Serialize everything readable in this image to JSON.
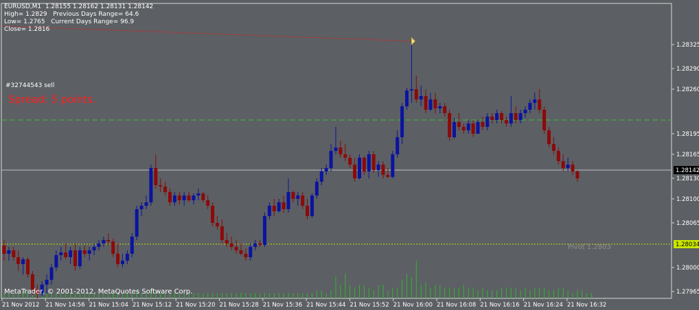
{
  "header": {
    "line1": "EURUSD,M1  1.28155 1.28162 1.28131 1.28142",
    "line2": "High= 1.2829   Previous Days Range= 64.6",
    "line3": "Low= 1.2765   Current Days Range= 96.9",
    "line4": "Close= 1.2816"
  },
  "order_label": "#32744543 sell",
  "spread_label": "Spread: 5 points.",
  "pivot_label": "Pivot  1.2803",
  "copyright": "MetaTrader, © 2001-2012, MetaQuotes Software Corp.",
  "colors": {
    "background": "#5c5f63",
    "bull": "#0a14a0",
    "bear": "#8c0a0a",
    "volume": "#2eb82e",
    "grid": "#000000",
    "order_line": "#3fbf3f",
    "pivot_line": "#c8e600",
    "price_line": "#c0c0c0"
  },
  "chart_data": {
    "type": "candlestick",
    "symbol": "EURUSD",
    "timeframe": "M1",
    "ylim": [
      1.27955,
      1.28385
    ],
    "y_ticks": [
      "1.28325",
      "1.28290",
      "1.28260",
      "1.28195",
      "1.28165",
      "1.28130",
      "1.28100",
      "1.28065",
      "1.28000",
      "1.27965"
    ],
    "x_ticks": [
      "21 Nov 2012",
      "21 Nov 14:56",
      "21 Nov 15:04",
      "21 Nov 15:12",
      "21 Nov 15:20",
      "21 Nov 15:28",
      "21 Nov 15:36",
      "21 Nov 15:44",
      "21 Nov 15:52",
      "21 Nov 16:00",
      "21 Nov 16:08",
      "21 Nov 16:16",
      "21 Nov 16:24",
      "21 Nov 16:32"
    ],
    "current_price": "1.28142",
    "order_price": "1.28215",
    "pivot_price": "1.28034",
    "pivot": 1.2803,
    "candles": [
      {
        "o": 1.28032,
        "h": 1.2804,
        "l": 1.2801,
        "c": 1.2802
      },
      {
        "o": 1.2802,
        "h": 1.2803,
        "l": 1.2801,
        "c": 1.28025
      },
      {
        "o": 1.28025,
        "h": 1.2803,
        "l": 1.2801,
        "c": 1.28015
      },
      {
        "o": 1.28015,
        "h": 1.28025,
        "l": 1.27995,
        "c": 1.28005
      },
      {
        "o": 1.28005,
        "h": 1.28015,
        "l": 1.2799,
        "c": 1.28012
      },
      {
        "o": 1.28012,
        "h": 1.28015,
        "l": 1.27985,
        "c": 1.2799
      },
      {
        "o": 1.2799,
        "h": 1.27995,
        "l": 1.2796,
        "c": 1.27968
      },
      {
        "o": 1.27968,
        "h": 1.27975,
        "l": 1.27955,
        "c": 1.27962
      },
      {
        "o": 1.27962,
        "h": 1.2798,
        "l": 1.27958,
        "c": 1.27975
      },
      {
        "o": 1.27975,
        "h": 1.2799,
        "l": 1.27962,
        "c": 1.27982
      },
      {
        "o": 1.27982,
        "h": 1.28005,
        "l": 1.27975,
        "c": 1.28
      },
      {
        "o": 1.28,
        "h": 1.28025,
        "l": 1.27995,
        "c": 1.28018
      },
      {
        "o": 1.28018,
        "h": 1.2803,
        "l": 1.2801,
        "c": 1.28022
      },
      {
        "o": 1.28022,
        "h": 1.28035,
        "l": 1.28012,
        "c": 1.28015
      },
      {
        "o": 1.28015,
        "h": 1.2803,
        "l": 1.28005,
        "c": 1.28025
      },
      {
        "o": 1.28025,
        "h": 1.28035,
        "l": 1.27995,
        "c": 1.28002
      },
      {
        "o": 1.28002,
        "h": 1.2803,
        "l": 1.27998,
        "c": 1.28025
      },
      {
        "o": 1.28025,
        "h": 1.28032,
        "l": 1.28015,
        "c": 1.2802
      },
      {
        "o": 1.2802,
        "h": 1.2803,
        "l": 1.2801,
        "c": 1.28025
      },
      {
        "o": 1.28025,
        "h": 1.28035,
        "l": 1.28018,
        "c": 1.2803
      },
      {
        "o": 1.2803,
        "h": 1.2804,
        "l": 1.28025,
        "c": 1.28035
      },
      {
        "o": 1.28035,
        "h": 1.28045,
        "l": 1.2803,
        "c": 1.2804
      },
      {
        "o": 1.2804,
        "h": 1.2805,
        "l": 1.28032,
        "c": 1.28038
      },
      {
        "o": 1.28038,
        "h": 1.28042,
        "l": 1.28015,
        "c": 1.2802
      },
      {
        "o": 1.2802,
        "h": 1.28035,
        "l": 1.28,
        "c": 1.28005
      },
      {
        "o": 1.28005,
        "h": 1.2802,
        "l": 1.28,
        "c": 1.2801
      },
      {
        "o": 1.2801,
        "h": 1.28025,
        "l": 1.28005,
        "c": 1.2802
      },
      {
        "o": 1.2802,
        "h": 1.2805,
        "l": 1.28015,
        "c": 1.28045
      },
      {
        "o": 1.28045,
        "h": 1.2809,
        "l": 1.2804,
        "c": 1.28085
      },
      {
        "o": 1.28085,
        "h": 1.28095,
        "l": 1.28075,
        "c": 1.2809
      },
      {
        "o": 1.2809,
        "h": 1.28105,
        "l": 1.28085,
        "c": 1.28095
      },
      {
        "o": 1.28095,
        "h": 1.2815,
        "l": 1.2809,
        "c": 1.28145
      },
      {
        "o": 1.28145,
        "h": 1.28165,
        "l": 1.28115,
        "c": 1.2812
      },
      {
        "o": 1.2812,
        "h": 1.2813,
        "l": 1.2811,
        "c": 1.28118
      },
      {
        "o": 1.28118,
        "h": 1.28125,
        "l": 1.28105,
        "c": 1.2811
      },
      {
        "o": 1.2811,
        "h": 1.28115,
        "l": 1.2809,
        "c": 1.28095
      },
      {
        "o": 1.28095,
        "h": 1.2811,
        "l": 1.2809,
        "c": 1.28105
      },
      {
        "o": 1.28105,
        "h": 1.2811,
        "l": 1.28092,
        "c": 1.28098
      },
      {
        "o": 1.28098,
        "h": 1.2811,
        "l": 1.2809,
        "c": 1.28105
      },
      {
        "o": 1.28105,
        "h": 1.2811,
        "l": 1.28095,
        "c": 1.28098
      },
      {
        "o": 1.28098,
        "h": 1.28108,
        "l": 1.28092,
        "c": 1.28105
      },
      {
        "o": 1.28105,
        "h": 1.28115,
        "l": 1.28098,
        "c": 1.28108
      },
      {
        "o": 1.28108,
        "h": 1.2811,
        "l": 1.28095,
        "c": 1.28098
      },
      {
        "o": 1.28098,
        "h": 1.28105,
        "l": 1.28085,
        "c": 1.2809
      },
      {
        "o": 1.2809,
        "h": 1.28095,
        "l": 1.2806,
        "c": 1.28065
      },
      {
        "o": 1.28065,
        "h": 1.28075,
        "l": 1.28055,
        "c": 1.2806
      },
      {
        "o": 1.2806,
        "h": 1.2807,
        "l": 1.28035,
        "c": 1.2804
      },
      {
        "o": 1.2804,
        "h": 1.2805,
        "l": 1.2803,
        "c": 1.28035
      },
      {
        "o": 1.28035,
        "h": 1.28045,
        "l": 1.28025,
        "c": 1.2803
      },
      {
        "o": 1.2803,
        "h": 1.2804,
        "l": 1.2802,
        "c": 1.28025
      },
      {
        "o": 1.28025,
        "h": 1.28035,
        "l": 1.28018,
        "c": 1.2802
      },
      {
        "o": 1.2802,
        "h": 1.28028,
        "l": 1.2801,
        "c": 1.28015
      },
      {
        "o": 1.28015,
        "h": 1.28035,
        "l": 1.2801,
        "c": 1.2803
      },
      {
        "o": 1.2803,
        "h": 1.2804,
        "l": 1.28025,
        "c": 1.28035
      },
      {
        "o": 1.28035,
        "h": 1.2804,
        "l": 1.2803,
        "c": 1.28033
      },
      {
        "o": 1.28033,
        "h": 1.2808,
        "l": 1.2803,
        "c": 1.28075
      },
      {
        "o": 1.28075,
        "h": 1.28095,
        "l": 1.2807,
        "c": 1.2809
      },
      {
        "o": 1.2809,
        "h": 1.281,
        "l": 1.28075,
        "c": 1.28082
      },
      {
        "o": 1.28082,
        "h": 1.281,
        "l": 1.2808,
        "c": 1.28095
      },
      {
        "o": 1.28095,
        "h": 1.28105,
        "l": 1.2808,
        "c": 1.28085
      },
      {
        "o": 1.28085,
        "h": 1.2813,
        "l": 1.2808,
        "c": 1.2811
      },
      {
        "o": 1.2811,
        "h": 1.28112,
        "l": 1.28095,
        "c": 1.281
      },
      {
        "o": 1.281,
        "h": 1.2811,
        "l": 1.2809,
        "c": 1.28105
      },
      {
        "o": 1.28105,
        "h": 1.2811,
        "l": 1.28085,
        "c": 1.2809
      },
      {
        "o": 1.2809,
        "h": 1.281,
        "l": 1.2807,
        "c": 1.28075
      },
      {
        "o": 1.28075,
        "h": 1.28108,
        "l": 1.28072,
        "c": 1.28105
      },
      {
        "o": 1.28105,
        "h": 1.2813,
        "l": 1.281,
        "c": 1.28125
      },
      {
        "o": 1.28125,
        "h": 1.28145,
        "l": 1.2812,
        "c": 1.2814
      },
      {
        "o": 1.2814,
        "h": 1.2815,
        "l": 1.28135,
        "c": 1.28145
      },
      {
        "o": 1.28145,
        "h": 1.2818,
        "l": 1.2814,
        "c": 1.2817
      },
      {
        "o": 1.2817,
        "h": 1.28205,
        "l": 1.28165,
        "c": 1.28175
      },
      {
        "o": 1.28175,
        "h": 1.28185,
        "l": 1.2816,
        "c": 1.28165
      },
      {
        "o": 1.28165,
        "h": 1.2818,
        "l": 1.28155,
        "c": 1.2816
      },
      {
        "o": 1.2816,
        "h": 1.28165,
        "l": 1.28145,
        "c": 1.2815
      },
      {
        "o": 1.2815,
        "h": 1.2816,
        "l": 1.28125,
        "c": 1.2813
      },
      {
        "o": 1.2813,
        "h": 1.28165,
        "l": 1.28128,
        "c": 1.2816
      },
      {
        "o": 1.2816,
        "h": 1.28162,
        "l": 1.28135,
        "c": 1.2814
      },
      {
        "o": 1.2814,
        "h": 1.2817,
        "l": 1.2813,
        "c": 1.28165
      },
      {
        "o": 1.28165,
        "h": 1.2817,
        "l": 1.28138,
        "c": 1.28142
      },
      {
        "o": 1.28142,
        "h": 1.28155,
        "l": 1.28132,
        "c": 1.2815
      },
      {
        "o": 1.2815,
        "h": 1.28155,
        "l": 1.2813,
        "c": 1.28135
      },
      {
        "o": 1.28135,
        "h": 1.28145,
        "l": 1.2813,
        "c": 1.28132
      },
      {
        "o": 1.28132,
        "h": 1.2817,
        "l": 1.2813,
        "c": 1.28165
      },
      {
        "o": 1.28165,
        "h": 1.282,
        "l": 1.2816,
        "c": 1.2819
      },
      {
        "o": 1.2819,
        "h": 1.2824,
        "l": 1.2818,
        "c": 1.28235
      },
      {
        "o": 1.28235,
        "h": 1.28262,
        "l": 1.2823,
        "c": 1.28258
      },
      {
        "o": 1.28258,
        "h": 1.2833,
        "l": 1.2824,
        "c": 1.2826
      },
      {
        "o": 1.2826,
        "h": 1.2828,
        "l": 1.2824,
        "c": 1.28245
      },
      {
        "o": 1.28245,
        "h": 1.28265,
        "l": 1.28235,
        "c": 1.2825
      },
      {
        "o": 1.2825,
        "h": 1.2826,
        "l": 1.28225,
        "c": 1.2823
      },
      {
        "o": 1.2823,
        "h": 1.28255,
        "l": 1.28228,
        "c": 1.28245
      },
      {
        "o": 1.28245,
        "h": 1.28255,
        "l": 1.28225,
        "c": 1.28232
      },
      {
        "o": 1.28232,
        "h": 1.2824,
        "l": 1.28225,
        "c": 1.28235
      },
      {
        "o": 1.28235,
        "h": 1.2824,
        "l": 1.2822,
        "c": 1.28225
      },
      {
        "o": 1.28225,
        "h": 1.2823,
        "l": 1.28185,
        "c": 1.2819
      },
      {
        "o": 1.2819,
        "h": 1.28218,
        "l": 1.28188,
        "c": 1.28212
      },
      {
        "o": 1.28212,
        "h": 1.28225,
        "l": 1.282,
        "c": 1.28205
      },
      {
        "o": 1.28205,
        "h": 1.2821,
        "l": 1.28195,
        "c": 1.282
      },
      {
        "o": 1.282,
        "h": 1.28215,
        "l": 1.28195,
        "c": 1.2821
      },
      {
        "o": 1.2821,
        "h": 1.28215,
        "l": 1.2819,
        "c": 1.28195
      },
      {
        "o": 1.28195,
        "h": 1.28215,
        "l": 1.28195,
        "c": 1.28212
      },
      {
        "o": 1.28212,
        "h": 1.2822,
        "l": 1.282,
        "c": 1.28205
      },
      {
        "o": 1.28205,
        "h": 1.28225,
        "l": 1.282,
        "c": 1.2822
      },
      {
        "o": 1.2822,
        "h": 1.28225,
        "l": 1.2821,
        "c": 1.28215
      },
      {
        "o": 1.28215,
        "h": 1.2823,
        "l": 1.2821,
        "c": 1.28225
      },
      {
        "o": 1.28225,
        "h": 1.28228,
        "l": 1.2821,
        "c": 1.28215
      },
      {
        "o": 1.28215,
        "h": 1.2822,
        "l": 1.28205,
        "c": 1.2821
      },
      {
        "o": 1.2821,
        "h": 1.2825,
        "l": 1.28205,
        "c": 1.28225
      },
      {
        "o": 1.28225,
        "h": 1.28235,
        "l": 1.2821,
        "c": 1.28215
      },
      {
        "o": 1.28215,
        "h": 1.2823,
        "l": 1.2821,
        "c": 1.28225
      },
      {
        "o": 1.28225,
        "h": 1.28235,
        "l": 1.28218,
        "c": 1.2823
      },
      {
        "o": 1.2823,
        "h": 1.28245,
        "l": 1.28225,
        "c": 1.2824
      },
      {
        "o": 1.2824,
        "h": 1.28255,
        "l": 1.2823,
        "c": 1.28245
      },
      {
        "o": 1.28245,
        "h": 1.2826,
        "l": 1.28225,
        "c": 1.2823
      },
      {
        "o": 1.2823,
        "h": 1.28235,
        "l": 1.28195,
        "c": 1.282
      },
      {
        "o": 1.282,
        "h": 1.28205,
        "l": 1.28175,
        "c": 1.2818
      },
      {
        "o": 1.2818,
        "h": 1.2819,
        "l": 1.28165,
        "c": 1.2817
      },
      {
        "o": 1.2817,
        "h": 1.28175,
        "l": 1.2815,
        "c": 1.28155
      },
      {
        "o": 1.28155,
        "h": 1.28165,
        "l": 1.2814,
        "c": 1.28145
      },
      {
        "o": 1.28145,
        "h": 1.2816,
        "l": 1.2814,
        "c": 1.2815
      },
      {
        "o": 1.2815,
        "h": 1.28155,
        "l": 1.28135,
        "c": 1.2814
      },
      {
        "o": 1.2814,
        "h": 1.28142,
        "l": 1.28125,
        "c": 1.2813
      }
    ],
    "volume": [
      2,
      2,
      2,
      2,
      3,
      3,
      2,
      3,
      2,
      2,
      2,
      2,
      2,
      2,
      2,
      2,
      2,
      2,
      2,
      2,
      2,
      2,
      2,
      2,
      2,
      2,
      2,
      2,
      3,
      2,
      2,
      3,
      3,
      2,
      2,
      2,
      2,
      2,
      2,
      2,
      2,
      2,
      2,
      2,
      2,
      2,
      2,
      2,
      2,
      2,
      2,
      2,
      2,
      2,
      2,
      2,
      2,
      2,
      2,
      2,
      2,
      2,
      2,
      2,
      2,
      2,
      3,
      3,
      2,
      3,
      8,
      5,
      9,
      5,
      4,
      5,
      5,
      4,
      3,
      5,
      5,
      3,
      4,
      4,
      7,
      9,
      8,
      14,
      5,
      6,
      4,
      5,
      5,
      4,
      4,
      4,
      4,
      5,
      4,
      4,
      3,
      4,
      3,
      3,
      3,
      4,
      4,
      4,
      4,
      3,
      4,
      3,
      4,
      4,
      4,
      3,
      3,
      4,
      4,
      3,
      2,
      3,
      3,
      2,
      2
    ]
  }
}
